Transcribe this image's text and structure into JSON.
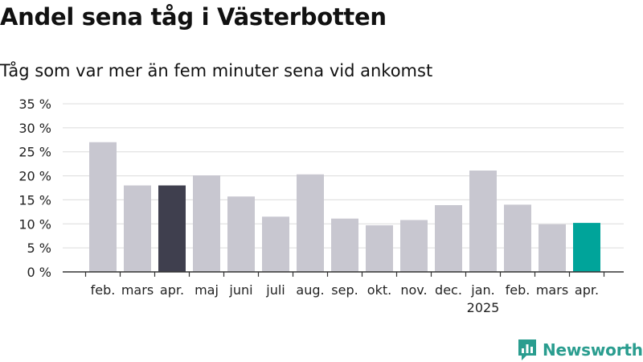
{
  "chart_data": {
    "type": "bar",
    "title": "Andel sena tåg i Västerbotten",
    "subtitle": "Tåg som var mer än fem minuter sena vid ankomst",
    "categories": [
      "feb.",
      "mars",
      "apr.",
      "maj",
      "juni",
      "juli",
      "aug.",
      "sep.",
      "okt.",
      "nov.",
      "dec.",
      "jan.",
      "feb.",
      "mars",
      "apr."
    ],
    "year_labels": [
      {
        "index": 11,
        "label": "2025"
      }
    ],
    "values": [
      27.0,
      18.0,
      18.0,
      20.1,
      15.7,
      11.5,
      20.3,
      11.1,
      9.7,
      10.8,
      13.9,
      21.1,
      14.0,
      9.9,
      10.2
    ],
    "highlight": {
      "2": "#3f3f4e",
      "14": "#00a49a"
    },
    "default_color": "#c8c7d0",
    "ylim": [
      0,
      35
    ],
    "yticks": [
      0,
      5,
      10,
      15,
      20,
      25,
      30,
      35
    ],
    "ytick_suffix": " %",
    "grid": true
  },
  "brand": {
    "name": "Newsworthy",
    "logo": "newsworthy-logo-icon",
    "color": "#2a9d8f"
  }
}
